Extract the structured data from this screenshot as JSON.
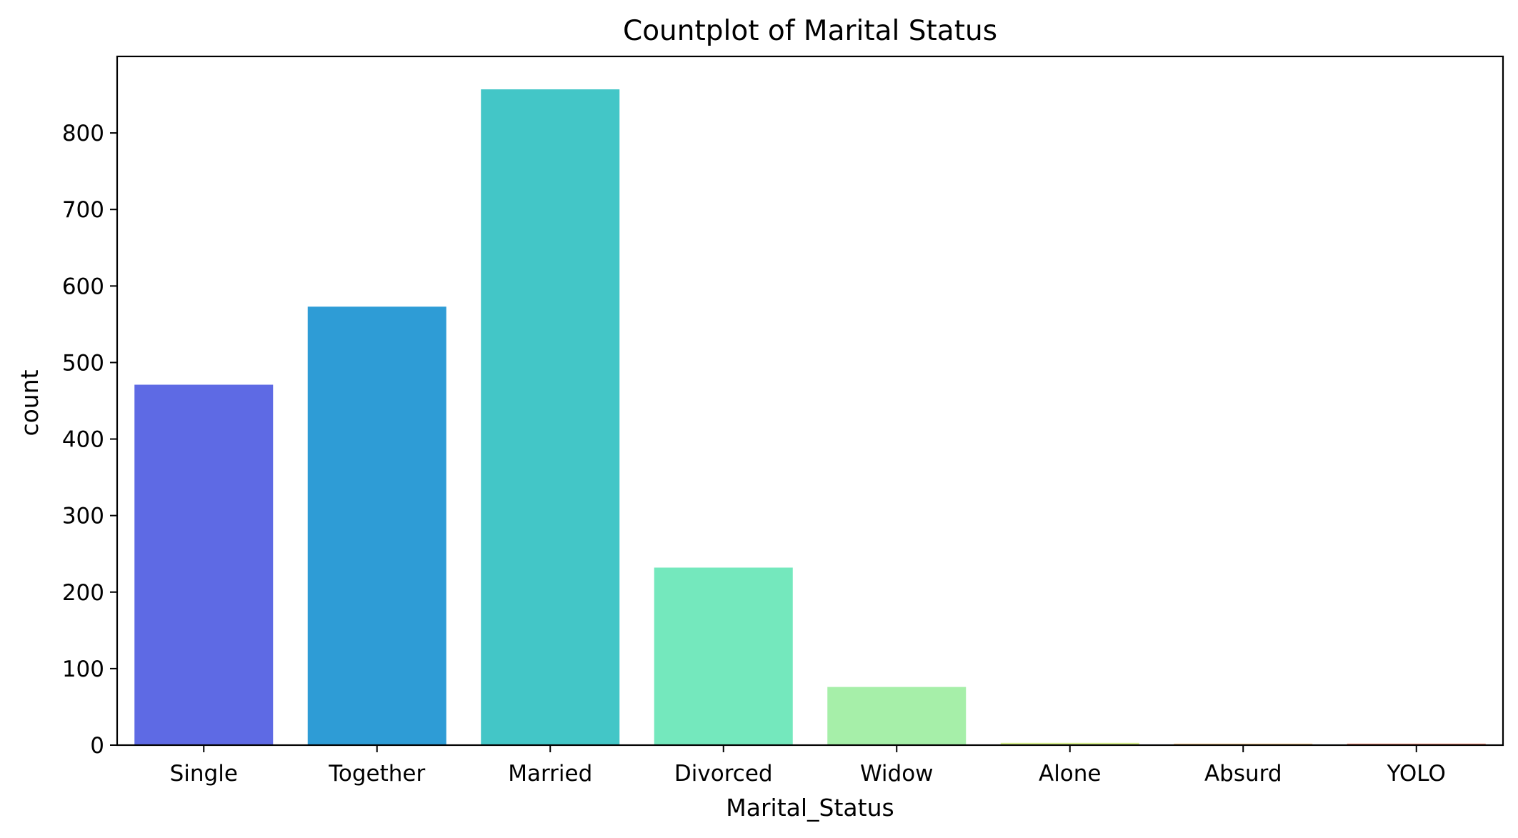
{
  "chart_data": {
    "type": "bar",
    "title": "Countplot of Marital Status",
    "xlabel": "Marital_Status",
    "ylabel": "count",
    "categories": [
      "Single",
      "Together",
      "Married",
      "Divorced",
      "Widow",
      "Alone",
      "Absurd",
      "YOLO"
    ],
    "values": [
      471,
      573,
      857,
      232,
      76,
      3,
      2,
      2
    ],
    "colors": [
      "#5e6ae4",
      "#2e9cd6",
      "#43c6c7",
      "#74e8bd",
      "#a6efa9",
      "#d6ee8c",
      "#f6c98b",
      "#f28a73"
    ],
    "ylim": [
      0,
      900
    ],
    "yticks": [
      0,
      100,
      200,
      300,
      400,
      500,
      600,
      700,
      800
    ],
    "grid": false,
    "legend": "none"
  }
}
